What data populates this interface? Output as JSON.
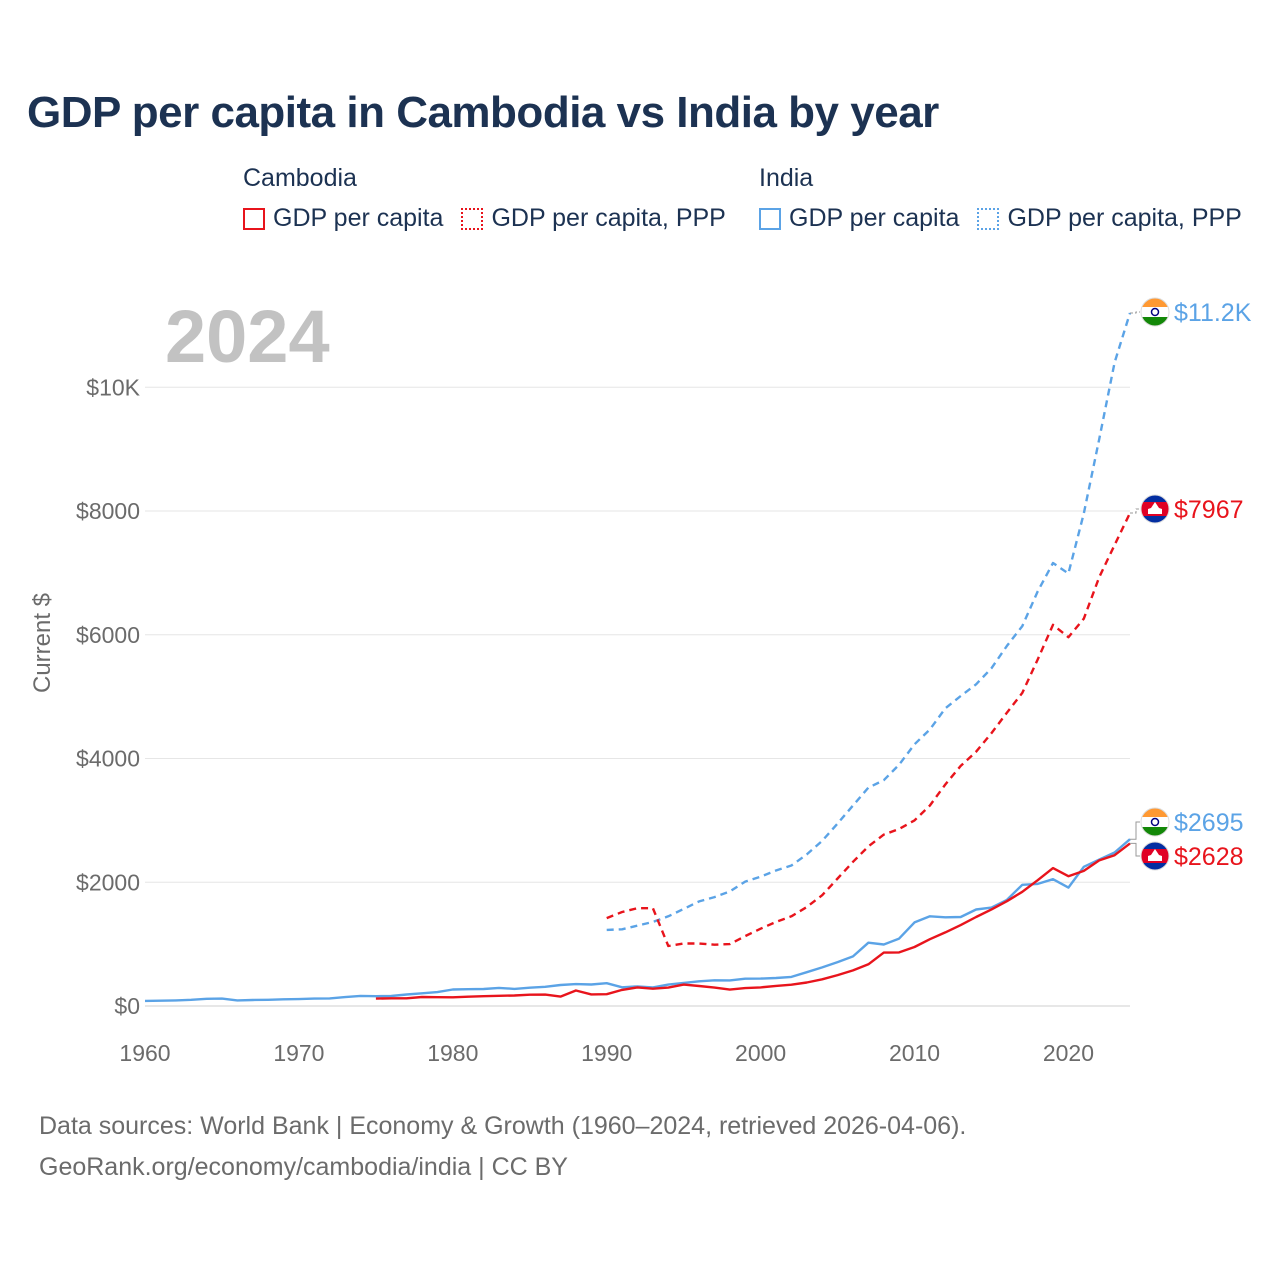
{
  "colors": {
    "cambodia": "#e8141c",
    "india": "#5ba3e6",
    "grid": "#e6e6e6",
    "title": "#1c3252"
  },
  "legend": {
    "cambodia": {
      "name": "Cambodia",
      "gdp": "GDP per capita",
      "ppp": "GDP per capita, PPP"
    },
    "india": {
      "name": "India",
      "gdp": "GDP per capita",
      "ppp": "GDP per capita, PPP"
    }
  },
  "source": {
    "line1": "Data sources: World Bank | Economy & Growth (1960–2024, retrieved 2026-04-06).",
    "line2": "GeoRank.org/economy/cambodia/india | CC BY"
  },
  "icons": {
    "india_flag": "india-flag-icon",
    "cambodia_flag": "cambodia-flag-icon"
  },
  "chart_data": {
    "type": "line",
    "title": "GDP per capita in Cambodia vs India by year",
    "year_label": "2024",
    "xlabel": "",
    "ylabel": "Current $",
    "xlim": [
      1960,
      2024
    ],
    "ylim": [
      0,
      11200
    ],
    "x_ticks": [
      1960,
      1970,
      1980,
      1990,
      2000,
      2010,
      2020
    ],
    "y_ticks": [
      {
        "value": 0,
        "label": "$0"
      },
      {
        "value": 2000,
        "label": "$2000"
      },
      {
        "value": 4000,
        "label": "$4000"
      },
      {
        "value": 6000,
        "label": "$6000"
      },
      {
        "value": 8000,
        "label": "$8000"
      },
      {
        "value": 10000,
        "label": "$10K"
      }
    ],
    "grid": true,
    "series": [
      {
        "name": "India GDP per capita, PPP",
        "country": "india",
        "style": "dashed",
        "end_label": "$11.2K",
        "flag": "india",
        "points": [
          [
            1990,
            1230
          ],
          [
            1991,
            1240
          ],
          [
            1992,
            1300
          ],
          [
            1993,
            1360
          ],
          [
            1994,
            1450
          ],
          [
            1995,
            1570
          ],
          [
            1996,
            1690
          ],
          [
            1997,
            1760
          ],
          [
            1998,
            1850
          ],
          [
            1999,
            2010
          ],
          [
            2000,
            2090
          ],
          [
            2001,
            2190
          ],
          [
            2002,
            2270
          ],
          [
            2003,
            2450
          ],
          [
            2004,
            2670
          ],
          [
            2005,
            2950
          ],
          [
            2006,
            3240
          ],
          [
            2007,
            3530
          ],
          [
            2008,
            3650
          ],
          [
            2009,
            3900
          ],
          [
            2010,
            4230
          ],
          [
            2011,
            4470
          ],
          [
            2012,
            4810
          ],
          [
            2013,
            5010
          ],
          [
            2014,
            5200
          ],
          [
            2015,
            5460
          ],
          [
            2016,
            5820
          ],
          [
            2017,
            6140
          ],
          [
            2018,
            6700
          ],
          [
            2019,
            7160
          ],
          [
            2020,
            6990
          ],
          [
            2021,
            7960
          ],
          [
            2022,
            9160
          ],
          [
            2023,
            10400
          ],
          [
            2024,
            11200
          ]
        ]
      },
      {
        "name": "Cambodia GDP per capita, PPP",
        "country": "cambodia",
        "style": "dashed",
        "end_label": "$7967",
        "flag": "cambodia",
        "points": [
          [
            1990,
            1420
          ],
          [
            1991,
            1520
          ],
          [
            1992,
            1580
          ],
          [
            1993,
            1580
          ],
          [
            1994,
            970
          ],
          [
            1995,
            1010
          ],
          [
            1996,
            1010
          ],
          [
            1997,
            990
          ],
          [
            1998,
            1000
          ],
          [
            1999,
            1130
          ],
          [
            2000,
            1250
          ],
          [
            2001,
            1360
          ],
          [
            2002,
            1450
          ],
          [
            2003,
            1600
          ],
          [
            2004,
            1790
          ],
          [
            2005,
            2060
          ],
          [
            2006,
            2330
          ],
          [
            2007,
            2580
          ],
          [
            2008,
            2770
          ],
          [
            2009,
            2860
          ],
          [
            2010,
            3000
          ],
          [
            2011,
            3240
          ],
          [
            2012,
            3580
          ],
          [
            2013,
            3880
          ],
          [
            2014,
            4110
          ],
          [
            2015,
            4410
          ],
          [
            2016,
            4740
          ],
          [
            2017,
            5060
          ],
          [
            2018,
            5600
          ],
          [
            2019,
            6160
          ],
          [
            2020,
            5960
          ],
          [
            2021,
            6260
          ],
          [
            2022,
            6930
          ],
          [
            2023,
            7450
          ],
          [
            2024,
            7967
          ]
        ]
      },
      {
        "name": "India GDP per capita",
        "country": "india",
        "style": "solid",
        "end_label": "$2695",
        "flag": "india",
        "points": [
          [
            1960,
            82
          ],
          [
            1961,
            86
          ],
          [
            1962,
            90
          ],
          [
            1963,
            101
          ],
          [
            1964,
            116
          ],
          [
            1965,
            119
          ],
          [
            1966,
            90
          ],
          [
            1967,
            97
          ],
          [
            1968,
            100
          ],
          [
            1969,
            108
          ],
          [
            1970,
            112
          ],
          [
            1971,
            119
          ],
          [
            1972,
            123
          ],
          [
            1973,
            144
          ],
          [
            1974,
            163
          ],
          [
            1975,
            158
          ],
          [
            1976,
            161
          ],
          [
            1977,
            186
          ],
          [
            1978,
            206
          ],
          [
            1979,
            224
          ],
          [
            1980,
            267
          ],
          [
            1981,
            271
          ],
          [
            1982,
            275
          ],
          [
            1983,
            292
          ],
          [
            1984,
            277
          ],
          [
            1985,
            296
          ],
          [
            1986,
            310
          ],
          [
            1987,
            340
          ],
          [
            1988,
            354
          ],
          [
            1989,
            347
          ],
          [
            1990,
            368
          ],
          [
            1991,
            303
          ],
          [
            1992,
            317
          ],
          [
            1993,
            301
          ],
          [
            1994,
            346
          ],
          [
            1995,
            374
          ],
          [
            1996,
            400
          ],
          [
            1997,
            415
          ],
          [
            1998,
            413
          ],
          [
            1999,
            442
          ],
          [
            2000,
            443
          ],
          [
            2001,
            452
          ],
          [
            2002,
            471
          ],
          [
            2003,
            546
          ],
          [
            2004,
            624
          ],
          [
            2005,
            710
          ],
          [
            2006,
            802
          ],
          [
            2007,
            1023
          ],
          [
            2008,
            994
          ],
          [
            2009,
            1090
          ],
          [
            2010,
            1351
          ],
          [
            2011,
            1450
          ],
          [
            2012,
            1434
          ],
          [
            2013,
            1438
          ],
          [
            2014,
            1560
          ],
          [
            2015,
            1590
          ],
          [
            2016,
            1714
          ],
          [
            2017,
            1958
          ],
          [
            2018,
            1974
          ],
          [
            2019,
            2050
          ],
          [
            2020,
            1913
          ],
          [
            2021,
            2250
          ],
          [
            2022,
            2366
          ],
          [
            2023,
            2481
          ],
          [
            2024,
            2695
          ]
        ]
      },
      {
        "name": "Cambodia GDP per capita",
        "country": "cambodia",
        "style": "solid",
        "end_label": "$2628",
        "flag": "cambodia",
        "points": [
          [
            1975,
            119
          ],
          [
            1976,
            125
          ],
          [
            1977,
            124
          ],
          [
            1978,
            145
          ],
          [
            1979,
            143
          ],
          [
            1980,
            140
          ],
          [
            1981,
            150
          ],
          [
            1982,
            158
          ],
          [
            1983,
            165
          ],
          [
            1984,
            170
          ],
          [
            1985,
            182
          ],
          [
            1986,
            185
          ],
          [
            1987,
            152
          ],
          [
            1988,
            250
          ],
          [
            1989,
            188
          ],
          [
            1990,
            190
          ],
          [
            1991,
            260
          ],
          [
            1992,
            300
          ],
          [
            1993,
            280
          ],
          [
            1994,
            297
          ],
          [
            1995,
            346
          ],
          [
            1996,
            323
          ],
          [
            1997,
            297
          ],
          [
            1998,
            265
          ],
          [
            1999,
            290
          ],
          [
            2000,
            300
          ],
          [
            2001,
            325
          ],
          [
            2002,
            345
          ],
          [
            2003,
            380
          ],
          [
            2004,
            432
          ],
          [
            2005,
            499
          ],
          [
            2006,
            576
          ],
          [
            2007,
            674
          ],
          [
            2008,
            863
          ],
          [
            2009,
            867
          ],
          [
            2010,
            953
          ],
          [
            2011,
            1079
          ],
          [
            2012,
            1190
          ],
          [
            2013,
            1307
          ],
          [
            2014,
            1438
          ],
          [
            2015,
            1561
          ],
          [
            2016,
            1693
          ],
          [
            2017,
            1845
          ],
          [
            2018,
            2033
          ],
          [
            2019,
            2229
          ],
          [
            2020,
            2097
          ],
          [
            2021,
            2184
          ],
          [
            2022,
            2353
          ],
          [
            2023,
            2437
          ],
          [
            2024,
            2628
          ]
        ]
      }
    ]
  }
}
